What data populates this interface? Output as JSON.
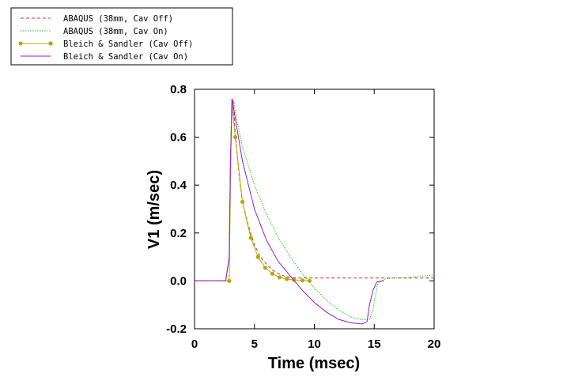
{
  "chart_data": {
    "type": "line",
    "title": "",
    "xlabel": "Time (msec)",
    "ylabel": "V1 (m/sec)",
    "xlim": [
      0,
      20
    ],
    "ylim": [
      -0.2,
      0.8
    ],
    "xticks": [
      "0",
      "5",
      "10",
      "15",
      "20"
    ],
    "yticks": [
      "-0.2",
      "0.0",
      "0.2",
      "0.4",
      "0.6",
      "0.8"
    ],
    "grid": false,
    "legend_position": "top-left, outside plot",
    "series": [
      {
        "name": "ABAQUS (38mm, Cav Off)",
        "color": "#e0302a",
        "style": "dashed",
        "x": [
          0,
          2.6,
          2.9,
          3.0,
          3.1,
          3.2,
          3.4,
          3.7,
          4.0,
          4.5,
          5.0,
          5.5,
          6.0,
          6.5,
          7.0,
          7.5,
          8.0,
          8.5,
          9.0,
          10.0,
          20.0
        ],
        "y": [
          0,
          0,
          0.1,
          0.5,
          0.74,
          0.76,
          0.62,
          0.45,
          0.33,
          0.23,
          0.15,
          0.1,
          0.07,
          0.045,
          0.03,
          0.02,
          0.015,
          0.012,
          0.012,
          0.012,
          0.012
        ]
      },
      {
        "name": "ABAQUS (38mm, Cav On)",
        "color": "#22cc22",
        "style": "dotted",
        "x": [
          0,
          2.6,
          2.9,
          3.0,
          3.1,
          3.3,
          3.5,
          4.0,
          5.0,
          6.0,
          7.0,
          8.0,
          9.0,
          10.0,
          11.0,
          12.0,
          13.0,
          14.0,
          14.6,
          14.9,
          15.1,
          15.3,
          15.6,
          16.0,
          17.0,
          18.0,
          19.0,
          20.0
        ],
        "y": [
          0,
          0,
          0.1,
          0.5,
          0.74,
          0.75,
          0.68,
          0.56,
          0.4,
          0.28,
          0.18,
          0.1,
          0.03,
          -0.03,
          -0.08,
          -0.12,
          -0.15,
          -0.163,
          -0.16,
          -0.12,
          -0.06,
          -0.01,
          0.0,
          0.01,
          0.012,
          0.015,
          0.02,
          0.025
        ]
      },
      {
        "name": "Bleich & Sandler (Cav Off)",
        "color": "#b5a800",
        "style": "solid-markers",
        "x": [
          0,
          2.6,
          2.9,
          3.0,
          3.1,
          3.4,
          4.0,
          4.7,
          5.3,
          5.9,
          6.5,
          7.1,
          7.7,
          8.3,
          9.0,
          9.6
        ],
        "y": [
          0,
          0,
          0.0,
          0.4,
          0.76,
          0.6,
          0.33,
          0.18,
          0.1,
          0.055,
          0.03,
          0.015,
          0.008,
          0.004,
          0.002,
          0.0
        ]
      },
      {
        "name": "Bleich & Sandler (Cav On)",
        "color": "#9a1ad0",
        "style": "solid",
        "x": [
          0,
          2.6,
          2.9,
          3.0,
          3.15,
          3.4,
          4.0,
          5.0,
          6.0,
          7.0,
          8.0,
          9.0,
          10.0,
          11.0,
          12.0,
          13.0,
          14.0,
          14.4,
          14.6,
          14.9,
          15.2,
          15.5,
          15.8
        ],
        "y": [
          0,
          0,
          0.1,
          0.5,
          0.76,
          0.68,
          0.5,
          0.3,
          0.17,
          0.08,
          0.02,
          -0.04,
          -0.09,
          -0.13,
          -0.16,
          -0.175,
          -0.18,
          -0.17,
          -0.1,
          -0.04,
          -0.005,
          -0.002,
          0.0
        ]
      }
    ]
  }
}
